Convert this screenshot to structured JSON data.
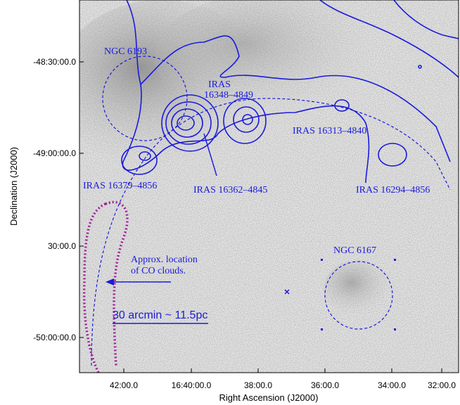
{
  "axes": {
    "x_title": "Right Ascension (J2000)",
    "y_title": "Declination (J2000)",
    "x_ticks": [
      "42:00.0",
      "16:40:00.0",
      "38:00.0",
      "36:00.0",
      "34:00.0",
      "32:00.0"
    ],
    "y_ticks": [
      "-48:30:00.0",
      "-49:00:00.0",
      "30:00.0",
      "-50:00:00.0"
    ]
  },
  "annotations": {
    "ngc6193": "NGC 6193",
    "iras_16348_a": "IRAS",
    "iras_16348_b": "16348–4849",
    "iras_16313": "IRAS 16313–4840",
    "iras_16379": "IRAS 16379–4856",
    "iras_16362": "IRAS 16362–4845",
    "iras_16294": "IRAS 16294–4856",
    "ngc6167": "NGC 6167",
    "co_line1": "Approx. location",
    "co_line2": "of CO clouds."
  },
  "scale_bar": "30 arcmin ~ 11.5pc"
}
